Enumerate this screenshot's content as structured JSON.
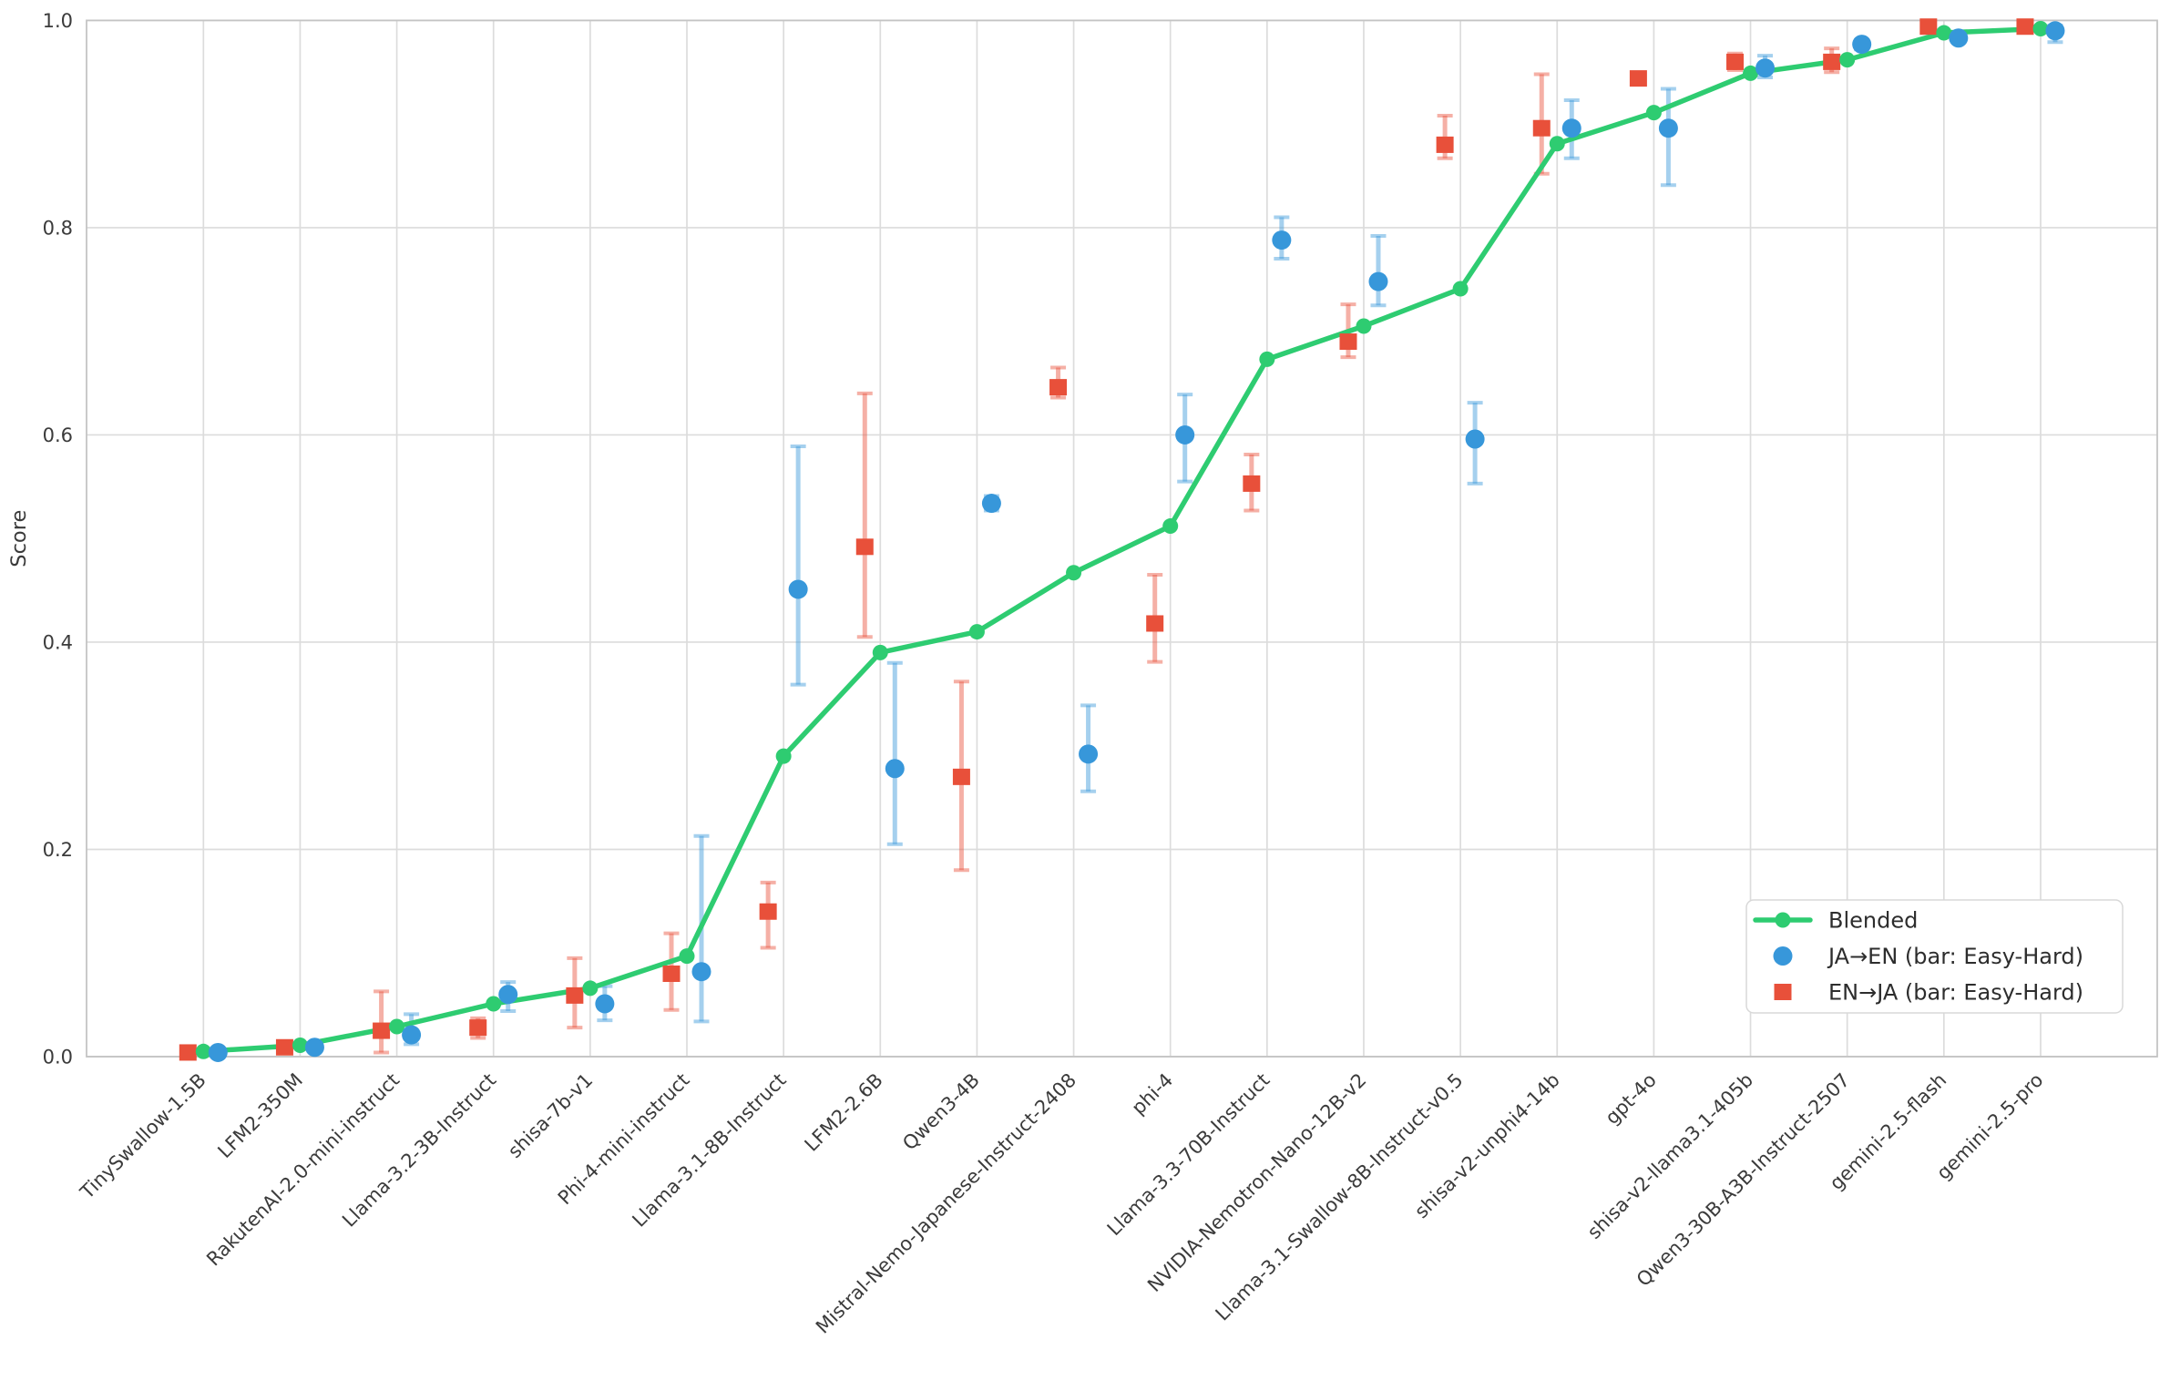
{
  "figure": {
    "background": "#ffffff"
  },
  "axis": {
    "ylabel": "Score",
    "ytick_labels": [
      "0.0",
      "0.2",
      "0.4",
      "0.6",
      "0.8",
      "1.0"
    ],
    "ytick_values": [
      0.0,
      0.2,
      0.4,
      0.6,
      0.8,
      1.0
    ],
    "ylim": [
      0.0,
      1.0
    ],
    "grid": true
  },
  "colors": {
    "blended": "#2ecc71",
    "ja_en": "#3797da",
    "en_ja": "#e8503a",
    "ja_en_bar": "rgba(55,151,218,0.45)",
    "en_ja_bar": "rgba(232,80,58,0.45)",
    "grid": "#dcdcdc",
    "spine": "#c4c4c4",
    "tick_text": "#3b3b3b",
    "legend_text": "#2d2d2d",
    "legend_border": "#d8d8d8"
  },
  "legend": {
    "position": "lower right",
    "items": [
      {
        "label": "Blended",
        "marker": "line-dot",
        "color": "#2ecc71"
      },
      {
        "label": "JA→EN (bar: Easy-Hard)",
        "marker": "circle",
        "color": "#3797da"
      },
      {
        "label": "EN→JA (bar: Easy-Hard)",
        "marker": "square",
        "color": "#e8503a"
      }
    ]
  },
  "chart_data": {
    "type": "line+scatter-errorbar",
    "title": "",
    "xlabel": "",
    "ylabel": "Score",
    "ylim": [
      0.0,
      1.0
    ],
    "grid": true,
    "legend_position": "lower right",
    "categories": [
      "TinySwallow-1.5B",
      "LFM2-350M",
      "RakutenAI-2.0-mini-instruct",
      "Llama-3.2-3B-Instruct",
      "shisa-7b-v1",
      "Phi-4-mini-instruct",
      "Llama-3.1-8B-Instruct",
      "LFM2-2.6B",
      "Qwen3-4B",
      "Mistral-Nemo-Japanese-Instruct-2408",
      "phi-4",
      "Llama-3.3-70B-Instruct",
      "NVIDIA-Nemotron-Nano-12B-v2",
      "Llama-3.1-Swallow-8B-Instruct-v0.5",
      "shisa-v2-unphi4-14b",
      "gpt-4o",
      "shisa-v2-llama3.1-405b",
      "Qwen3-30B-A3B-Instruct-2507",
      "gemini-2.5-flash",
      "gemini-2.5-pro"
    ],
    "series": [
      {
        "name": "Blended",
        "style": "line",
        "color": "#2ecc71",
        "values": [
          0.005,
          0.011,
          0.029,
          0.051,
          0.066,
          0.097,
          0.29,
          0.39,
          0.41,
          0.467,
          0.512,
          0.673,
          0.705,
          0.741,
          0.881,
          0.911,
          0.949,
          0.962,
          0.988,
          0.992
        ]
      },
      {
        "name": "JA→EN (bar: Easy-Hard)",
        "style": "scatter-circle",
        "color": "#3797da",
        "bar_color": "rgba(55,151,218,0.45)",
        "x_offset": 16,
        "values": [
          0.004,
          0.009,
          0.021,
          0.06,
          0.051,
          0.082,
          0.451,
          0.278,
          0.534,
          0.292,
          0.6,
          0.788,
          0.748,
          0.596,
          0.896,
          0.896,
          0.954,
          0.977,
          0.983,
          0.99
        ],
        "bar_low": [
          0.002,
          0.006,
          0.012,
          0.044,
          0.035,
          0.034,
          0.359,
          0.205,
          0.527,
          0.256,
          0.555,
          0.77,
          0.725,
          0.553,
          0.867,
          0.841,
          0.945,
          0.972,
          0.98,
          0.979
        ],
        "bar_high": [
          0.007,
          0.012,
          0.041,
          0.072,
          0.068,
          0.213,
          0.589,
          0.38,
          0.541,
          0.339,
          0.639,
          0.81,
          0.792,
          0.631,
          0.923,
          0.934,
          0.966,
          0.981,
          0.986,
          0.995
        ]
      },
      {
        "name": "EN→JA (bar: Easy-Hard)",
        "style": "scatter-square",
        "color": "#e8503a",
        "bar_color": "rgba(232,80,58,0.45)",
        "x_offset": -17,
        "values": [
          0.004,
          0.009,
          0.025,
          0.028,
          0.059,
          0.08,
          0.14,
          0.492,
          0.27,
          0.646,
          0.418,
          0.553,
          0.69,
          0.88,
          0.896,
          0.944,
          0.96,
          0.96,
          0.994,
          0.994
        ],
        "bar_low": [
          0.002,
          0.006,
          0.004,
          0.018,
          0.028,
          0.045,
          0.105,
          0.405,
          0.18,
          0.636,
          0.381,
          0.527,
          0.675,
          0.867,
          0.852,
          0.94,
          0.952,
          0.95,
          0.992,
          0.992
        ],
        "bar_high": [
          0.007,
          0.013,
          0.063,
          0.037,
          0.095,
          0.119,
          0.168,
          0.64,
          0.362,
          0.665,
          0.465,
          0.581,
          0.726,
          0.908,
          0.948,
          0.949,
          0.968,
          0.973,
          0.996,
          0.996
        ]
      }
    ]
  }
}
